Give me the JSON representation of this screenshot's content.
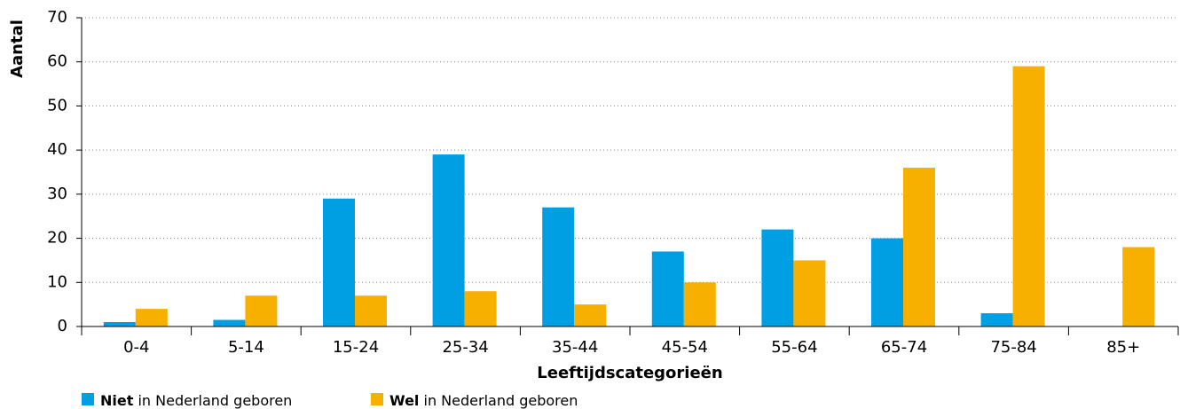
{
  "chart_data": {
    "type": "bar",
    "y_label": "Aantal",
    "x_label": "Leeftijdscategorieën",
    "categories": [
      "0-4",
      "5-14",
      "15-24",
      "25-34",
      "35-44",
      "45-54",
      "55-64",
      "65-74",
      "75-84",
      "85+"
    ],
    "series": [
      {
        "name": "Niet in Nederland geboren",
        "color": "#009fe3",
        "values": [
          1,
          1.5,
          29,
          39,
          27,
          17,
          22,
          20,
          3,
          0
        ]
      },
      {
        "name": "Wel in Nederland geboren",
        "color": "#f8b000",
        "values": [
          4,
          7,
          7,
          8,
          5,
          10,
          15,
          36,
          59,
          18
        ]
      }
    ],
    "ylim": [
      0,
      70
    ],
    "yticks": [
      0,
      10,
      20,
      30,
      40,
      50,
      60,
      70
    ],
    "grid": true
  }
}
